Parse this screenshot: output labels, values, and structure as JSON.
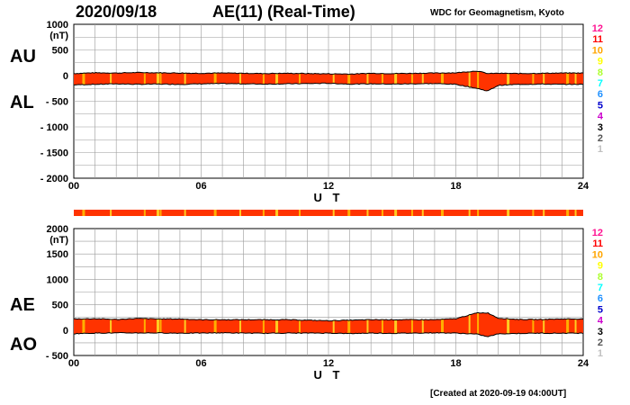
{
  "header": {
    "date": "2020/09/18",
    "title": "AE(11) (Real-Time)",
    "source": "WDC for Geomagnetism, Kyoto"
  },
  "footer": {
    "created": "[Created at 2020-09-19 04:00UT]"
  },
  "panel_labels": {
    "au": "AU",
    "al": "AL",
    "ae": "AE",
    "ao": "AO"
  },
  "colors": {
    "envelope": "#000000",
    "stripe_fill": "#ff3300",
    "grid": "#9a9a9a",
    "levels": {
      "12": "#ff1493",
      "11": "#ff0000",
      "10": "#ffa500",
      "9": "#ffff00",
      "8": "#adff2f",
      "7": "#00ffff",
      "6": "#1e90ff",
      "5": "#0000cd",
      "4": "#cc00cc",
      "3": "#000000",
      "2": "#555555",
      "1": "#c0c0c0"
    }
  },
  "legend": {
    "levels": [
      "12",
      "11",
      "10",
      "9",
      "8",
      "7",
      "6",
      "5",
      "4",
      "3",
      "2",
      "1"
    ]
  },
  "chart_data": [
    {
      "type": "area",
      "title": "AU / AL",
      "xlabel": "U T",
      "ylabel": "(nT)",
      "xlim": [
        0,
        24
      ],
      "ylim": [
        -2000,
        1000
      ],
      "xticks": [
        "00",
        "06",
        "12",
        "18",
        "24"
      ],
      "yticks": [
        {
          "value": 1000,
          "label": "1000"
        },
        {
          "value": 500,
          "label": "500"
        },
        {
          "value": 0,
          "label": "0"
        },
        {
          "value": -500,
          "label": "- 500"
        },
        {
          "value": -1000,
          "label": "- 1000"
        },
        {
          "value": -1500,
          "label": "- 1500"
        },
        {
          "value": -2000,
          "label": "- 2000"
        }
      ],
      "series": [
        {
          "name": "AU",
          "x": [
            0,
            1,
            2,
            3,
            4,
            5,
            6,
            7,
            8,
            9,
            10,
            11,
            12,
            13,
            14,
            15,
            16,
            17,
            18,
            19,
            19.5,
            20,
            21,
            22,
            23,
            24
          ],
          "values": [
            40,
            55,
            50,
            60,
            55,
            50,
            45,
            50,
            45,
            40,
            45,
            40,
            35,
            30,
            45,
            40,
            45,
            50,
            55,
            90,
            40,
            45,
            40,
            45,
            50,
            50
          ]
        },
        {
          "name": "AL",
          "x": [
            0,
            1,
            2,
            3,
            4,
            5,
            6,
            7,
            8,
            9,
            10,
            11,
            12,
            13,
            14,
            15,
            16,
            17,
            18,
            19,
            19.5,
            20,
            21,
            22,
            23,
            24
          ],
          "values": [
            -180,
            -170,
            -160,
            -170,
            -165,
            -170,
            -160,
            -155,
            -160,
            -165,
            -160,
            -155,
            -150,
            -165,
            -160,
            -165,
            -160,
            -155,
            -170,
            -250,
            -300,
            -190,
            -170,
            -165,
            -170,
            -170
          ]
        }
      ]
    },
    {
      "type": "area",
      "title": "AE / AO",
      "xlabel": "U T",
      "ylabel": "(nT)",
      "xlim": [
        0,
        24
      ],
      "ylim": [
        -500,
        2000
      ],
      "xticks": [
        "00",
        "06",
        "12",
        "18",
        "24"
      ],
      "yticks": [
        {
          "value": 2000,
          "label": "2000"
        },
        {
          "value": 1500,
          "label": "1500"
        },
        {
          "value": 1000,
          "label": "1000"
        },
        {
          "value": 500,
          "label": "500"
        },
        {
          "value": 0,
          "label": "0"
        },
        {
          "value": -500,
          "label": "- 500"
        }
      ],
      "series": [
        {
          "name": "AE",
          "x": [
            0,
            1,
            2,
            3,
            4,
            5,
            6,
            7,
            8,
            9,
            10,
            11,
            12,
            13,
            14,
            15,
            16,
            17,
            18,
            19,
            19.5,
            20,
            21,
            22,
            23,
            24
          ],
          "values": [
            220,
            225,
            210,
            230,
            220,
            220,
            205,
            205,
            205,
            205,
            205,
            195,
            185,
            195,
            205,
            205,
            205,
            205,
            225,
            340,
            340,
            235,
            210,
            210,
            220,
            220
          ]
        },
        {
          "name": "AO",
          "x": [
            0,
            1,
            2,
            3,
            4,
            5,
            6,
            7,
            8,
            9,
            10,
            11,
            12,
            13,
            14,
            15,
            16,
            17,
            18,
            19,
            19.5,
            20,
            21,
            22,
            23,
            24
          ],
          "values": [
            -70,
            -58,
            -55,
            -55,
            -55,
            -60,
            -58,
            -53,
            -58,
            -63,
            -58,
            -58,
            -58,
            -68,
            -58,
            -63,
            -58,
            -53,
            -58,
            -80,
            -130,
            -73,
            -65,
            -60,
            -60,
            -60
          ]
        }
      ]
    }
  ]
}
